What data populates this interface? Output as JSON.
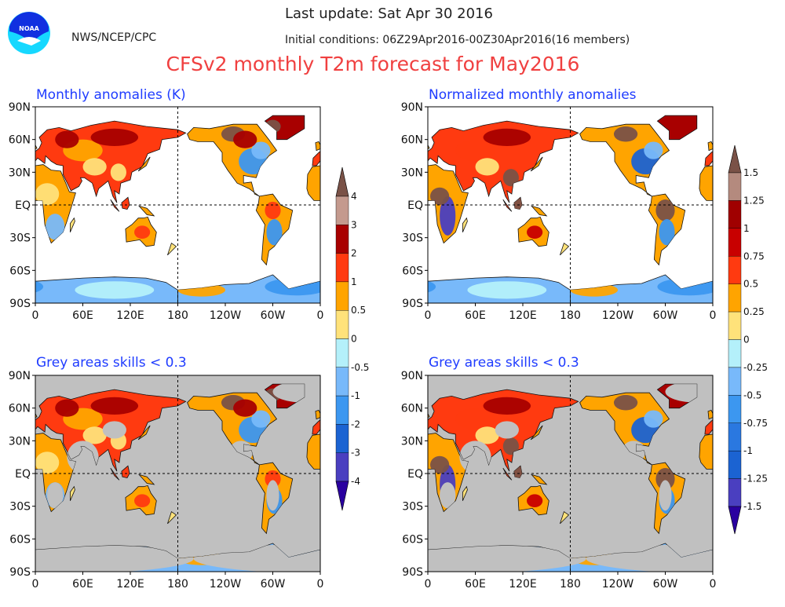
{
  "header": {
    "org": "NWS/NCEP/CPC",
    "logo_text": "NOAA",
    "last_update": "Last update: Sat Apr 30 2016",
    "initial_conditions": "Initial conditions: 06Z29Apr2016-00Z30Apr2016(16 members)",
    "title": "CFSv2 monthly T2m forecast for May2016"
  },
  "panels": [
    {
      "title": "Monthly anomalies (K)",
      "grey_skill_mask": false
    },
    {
      "title": "Normalized monthly anomalies",
      "grey_skill_mask": false
    },
    {
      "title": "Grey areas skills < 0.3",
      "grey_skill_mask": true
    },
    {
      "title": "Grey areas skills < 0.3",
      "grey_skill_mask": true
    }
  ],
  "axes": {
    "lat_labels": [
      "90N",
      "60N",
      "30N",
      "EQ",
      "30S",
      "60S",
      "90S"
    ],
    "lon_labels": [
      "0",
      "60E",
      "120E",
      "180",
      "120W",
      "60W",
      "0"
    ]
  },
  "colorbars": [
    {
      "name": "anomaly-colorbar",
      "labels": [
        "4",
        "3",
        "2",
        "1",
        "0.5",
        "0",
        "-0.5",
        "-1",
        "-2",
        "-3",
        "-4"
      ]
    },
    {
      "name": "normalized-colorbar",
      "labels": [
        "1.5",
        "1.25",
        "1",
        "0.75",
        "0.5",
        "0.25",
        "0",
        "-0.25",
        "-0.5",
        "-0.75",
        "-1",
        "-1.25",
        "-1.5"
      ]
    }
  ],
  "colors": {
    "above_top": "#7a5247",
    "left_bar": [
      "#c49a8e",
      "#a80000",
      "#ff3a10",
      "#ffa400",
      "#ffe27a",
      "#b4f0fa",
      "#78b9fa",
      "#3c97f0",
      "#1b63d2",
      "#4a3fc0"
    ],
    "right_bar": [
      "#b48a7e",
      "#a00000",
      "#c80000",
      "#ff3a10",
      "#ffa400",
      "#ffe27a",
      "#b4f0fa",
      "#78b9fa",
      "#3c97f0",
      "#2a78e0",
      "#1b63d2",
      "#4a3fc0"
    ],
    "below_bottom": "#2a00a0",
    "title_red": "#f04040",
    "panel_title_blue": "#1f3cff",
    "grey_mask": "#c0c0c0"
  }
}
